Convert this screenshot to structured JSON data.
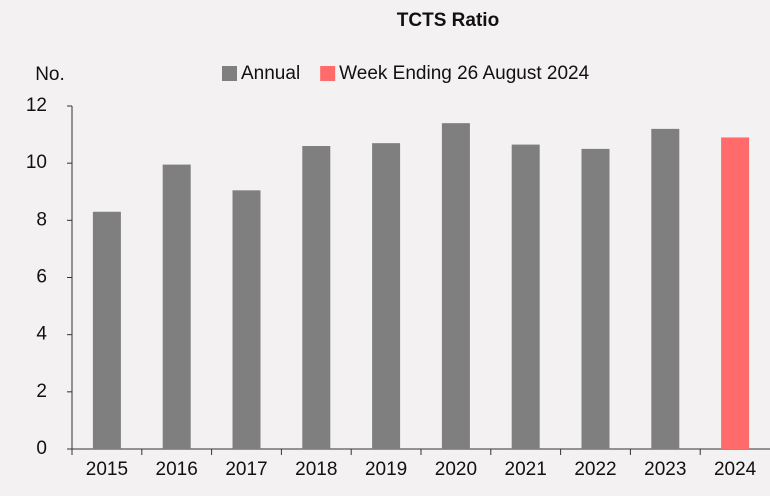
{
  "chart_data": {
    "type": "bar",
    "title": "TCTS Ratio",
    "y_label": "No.",
    "categories": [
      "2015",
      "2016",
      "2017",
      "2018",
      "2019",
      "2020",
      "2021",
      "2022",
      "2023",
      "2024"
    ],
    "series": [
      {
        "name": "Annual",
        "color": "#7f7f7f",
        "values": [
          8.3,
          9.95,
          9.05,
          10.6,
          10.7,
          11.4,
          10.65,
          10.5,
          11.2,
          null
        ]
      },
      {
        "name": "Week Ending 26 August 2024",
        "color": "#ff6b6b",
        "values": [
          null,
          null,
          null,
          null,
          null,
          null,
          null,
          null,
          null,
          10.9
        ]
      }
    ],
    "ylim": [
      0,
      12
    ],
    "yticks": [
      0,
      2,
      4,
      6,
      8,
      10,
      12
    ],
    "grid": false,
    "legend": "top"
  }
}
